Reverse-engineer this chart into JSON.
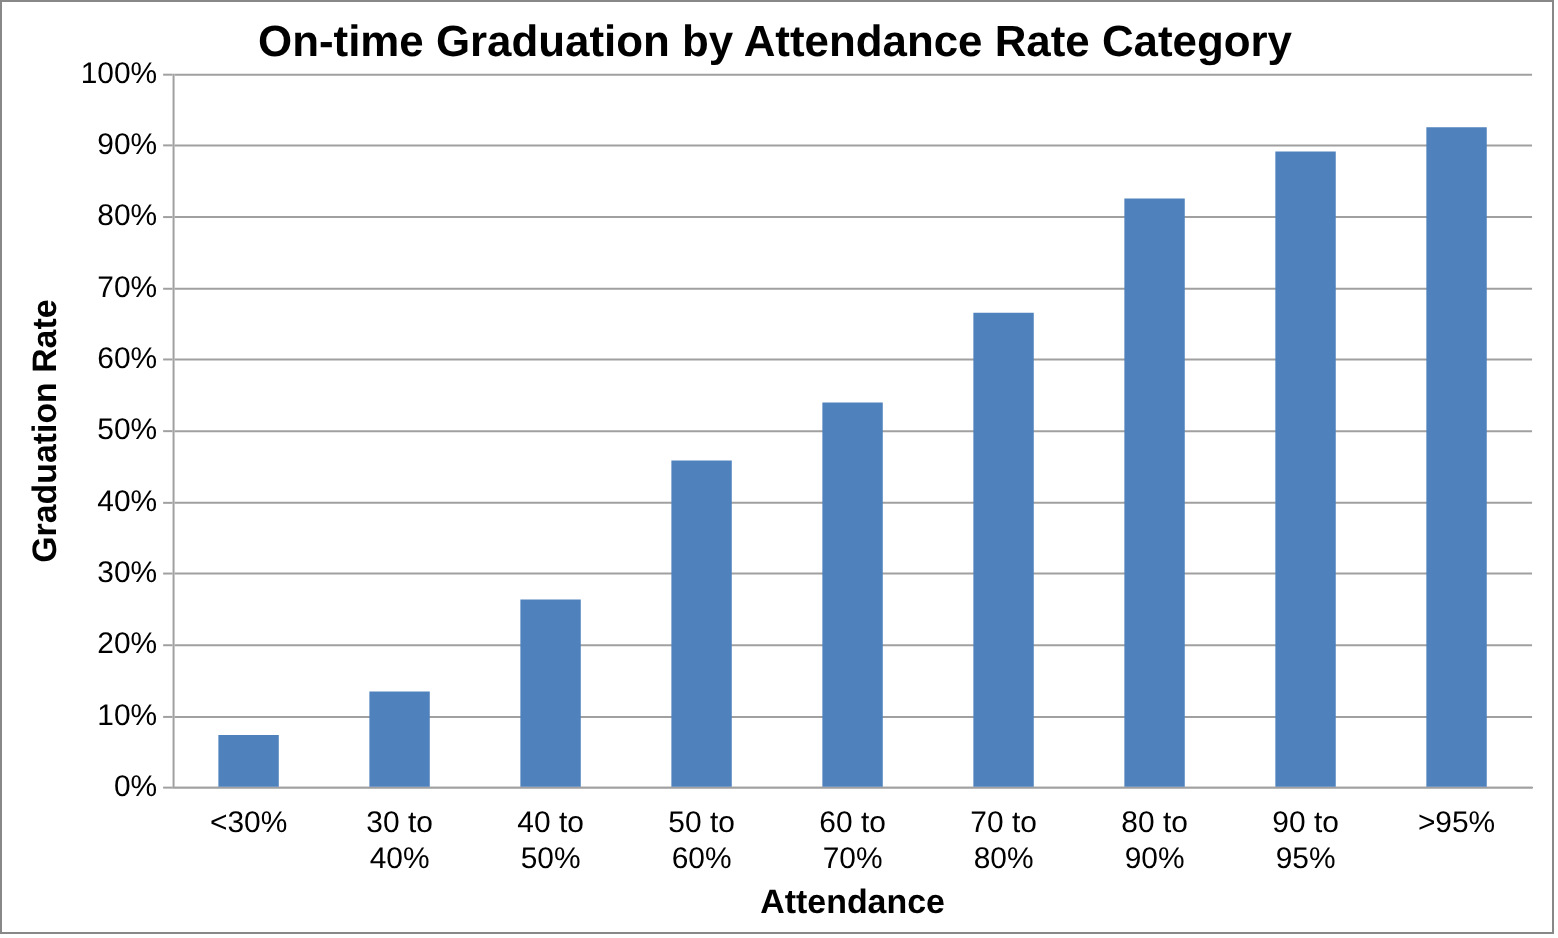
{
  "chart_data": {
    "type": "bar",
    "title": "On-time Graduation by Attendance Rate Category",
    "xlabel": "Attendance",
    "ylabel": "Graduation Rate",
    "categories": [
      "<30%",
      "30 to 40%",
      "40 to 50%",
      "50 to 60%",
      "60 to 70%",
      "70 to 80%",
      "80 to 90%",
      "90 to 95%",
      ">95%"
    ],
    "values": [
      7.4,
      13.5,
      26.4,
      45.9,
      54.0,
      66.6,
      82.6,
      89.2,
      92.6
    ],
    "color": "#4f81bd",
    "ylim": [
      0,
      100
    ],
    "yticks": [
      {
        "value": 0,
        "label": "0%"
      },
      {
        "value": 10,
        "label": "10%"
      },
      {
        "value": 20,
        "label": "20%"
      },
      {
        "value": 30,
        "label": "30%"
      },
      {
        "value": 40,
        "label": "40%"
      },
      {
        "value": 50,
        "label": "50%"
      },
      {
        "value": 60,
        "label": "60%"
      },
      {
        "value": 70,
        "label": "70%"
      },
      {
        "value": 80,
        "label": "80%"
      },
      {
        "value": 90,
        "label": "90%"
      },
      {
        "value": 100,
        "label": "100%"
      }
    ],
    "grid": "y",
    "legend": false
  }
}
